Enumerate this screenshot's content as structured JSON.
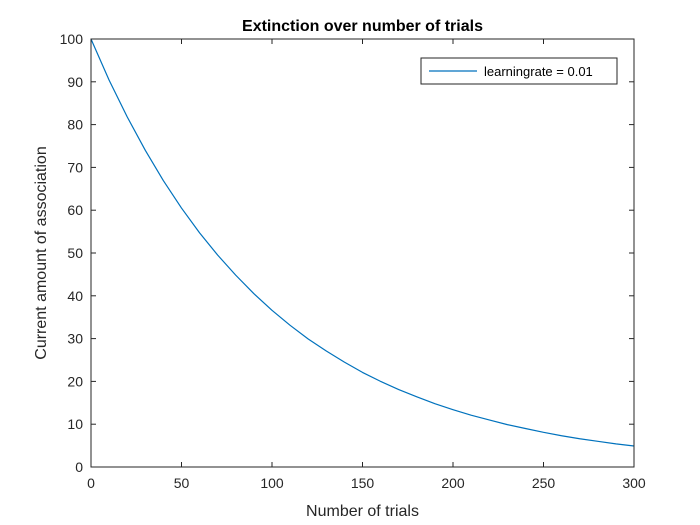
{
  "chart_data": {
    "type": "line",
    "title": "Extinction over number of trials",
    "xlabel": "Number of trials",
    "ylabel": "Current amount of association",
    "xlim": [
      0,
      300
    ],
    "ylim": [
      0,
      100
    ],
    "xticks": [
      0,
      50,
      100,
      150,
      200,
      250,
      300
    ],
    "yticks": [
      0,
      10,
      20,
      30,
      40,
      50,
      60,
      70,
      80,
      90,
      100
    ],
    "legend_position": "top-right",
    "grid": false,
    "series": [
      {
        "name": "learningrate = 0.01",
        "color": "#0072BD",
        "x": [
          0,
          10,
          20,
          30,
          40,
          50,
          60,
          70,
          80,
          90,
          100,
          110,
          120,
          130,
          140,
          150,
          160,
          170,
          180,
          190,
          200,
          210,
          220,
          230,
          240,
          250,
          260,
          270,
          280,
          290,
          300
        ],
        "y": [
          100,
          90.4,
          81.8,
          74.0,
          66.9,
          60.5,
          54.7,
          49.5,
          44.8,
          40.5,
          36.6,
          33.1,
          29.9,
          27.1,
          24.5,
          22.1,
          20.0,
          18.1,
          16.4,
          14.8,
          13.4,
          12.1,
          11.0,
          9.9,
          9.0,
          8.1,
          7.3,
          6.6,
          6.0,
          5.4,
          4.9
        ]
      }
    ]
  }
}
